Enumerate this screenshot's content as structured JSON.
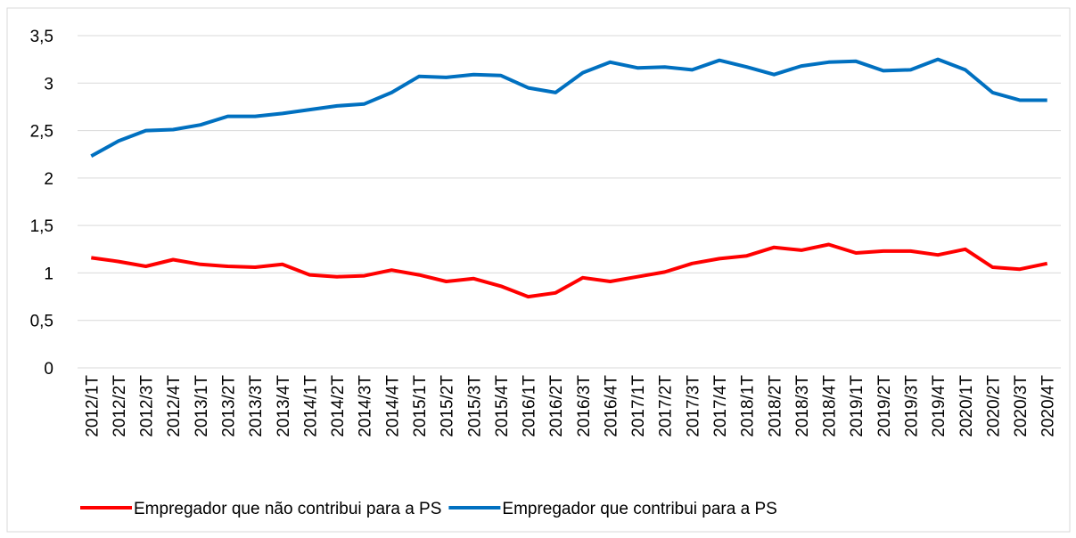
{
  "chart_data": {
    "type": "line",
    "categories": [
      "2012/1T",
      "2012/2T",
      "2012/3T",
      "2012/4T",
      "2013/1T",
      "2013/2T",
      "2013/3T",
      "2013/4T",
      "2014/1T",
      "2014/2T",
      "2014/3T",
      "2014/4T",
      "2015/1T",
      "2015/2T",
      "2015/3T",
      "2015/4T",
      "2016/1T",
      "2016/2T",
      "2016/3T",
      "2016/4T",
      "2017/1T",
      "2017/2T",
      "2017/3T",
      "2017/4T",
      "2018/1T",
      "2018/2T",
      "2018/3T",
      "2018/4T",
      "2019/1T",
      "2019/2T",
      "2019/3T",
      "2019/4T",
      "2020/1T",
      "2020/2T",
      "2020/3T",
      "2020/4T"
    ],
    "series": [
      {
        "name": "Empregador que não contribui para a PS",
        "color": "#ff0000",
        "values": [
          1.16,
          1.12,
          1.07,
          1.14,
          1.09,
          1.07,
          1.06,
          1.09,
          0.98,
          0.96,
          0.97,
          1.03,
          0.98,
          0.91,
          0.94,
          0.86,
          0.75,
          0.79,
          0.95,
          0.91,
          0.96,
          1.01,
          1.1,
          1.15,
          1.18,
          1.27,
          1.24,
          1.3,
          1.21,
          1.23,
          1.23,
          1.19,
          1.25,
          1.06,
          1.04,
          1.1
        ]
      },
      {
        "name": "Empregador que contribui para a PS",
        "color": "#0070c0",
        "values": [
          2.23,
          2.39,
          2.5,
          2.51,
          2.56,
          2.65,
          2.65,
          2.68,
          2.72,
          2.76,
          2.78,
          2.9,
          3.07,
          3.06,
          3.09,
          3.08,
          2.95,
          2.9,
          3.11,
          3.22,
          3.16,
          3.17,
          3.14,
          3.24,
          3.17,
          3.09,
          3.18,
          3.22,
          3.23,
          3.13,
          3.14,
          3.25,
          3.14,
          2.9,
          2.82,
          2.82
        ]
      }
    ],
    "ylim": [
      0,
      3.5
    ],
    "yticks": [
      0,
      {
        "value": 0.5,
        "label": "0,5"
      },
      1,
      {
        "value": 1.5,
        "label": "1,5"
      },
      2,
      {
        "value": 2.5,
        "label": "2,5"
      },
      3,
      {
        "value": 3.5,
        "label": "3,5"
      }
    ],
    "grid": true,
    "legend": "bottom"
  }
}
